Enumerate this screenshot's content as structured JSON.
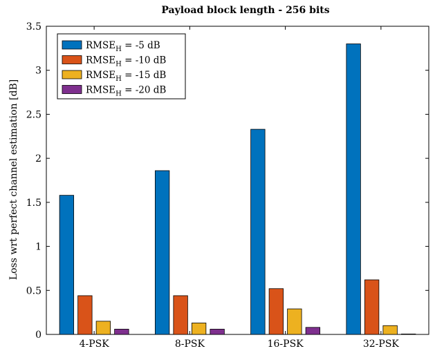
{
  "chart_data": {
    "type": "bar",
    "title": "Payload block length - 256 bits",
    "xlabel": "",
    "ylabel": "Loss wrt perfect channel estimation [dB]",
    "categories": [
      "4-PSK",
      "8-PSK",
      "16-PSK",
      "32-PSK"
    ],
    "ylim": [
      0,
      3.5
    ],
    "yticks": [
      0,
      0.5,
      1,
      1.5,
      2,
      2.5,
      3,
      3.5
    ],
    "ytick_labels": [
      "0",
      "0.5",
      "1",
      "1.5",
      "2",
      "2.5",
      "3",
      "3.5"
    ],
    "grid": false,
    "legend_position": "top-left",
    "series": [
      {
        "name_main": "RMSE",
        "name_sub": "H",
        "name_suffix": " = -5 dB",
        "color": "#0072BD",
        "values": [
          1.58,
          1.86,
          2.33,
          3.3
        ]
      },
      {
        "name_main": "RMSE",
        "name_sub": "H",
        "name_suffix": " = -10 dB",
        "color": "#D95319",
        "values": [
          0.44,
          0.44,
          0.52,
          0.62
        ]
      },
      {
        "name_main": "RMSE",
        "name_sub": "H",
        "name_suffix": " = -15 dB",
        "color": "#EDB120",
        "values": [
          0.15,
          0.13,
          0.29,
          0.1
        ]
      },
      {
        "name_main": "RMSE",
        "name_sub": "H",
        "name_suffix": " = -20 dB",
        "color": "#7E2F8E",
        "values": [
          0.06,
          0.06,
          0.08,
          0.005
        ]
      }
    ]
  }
}
